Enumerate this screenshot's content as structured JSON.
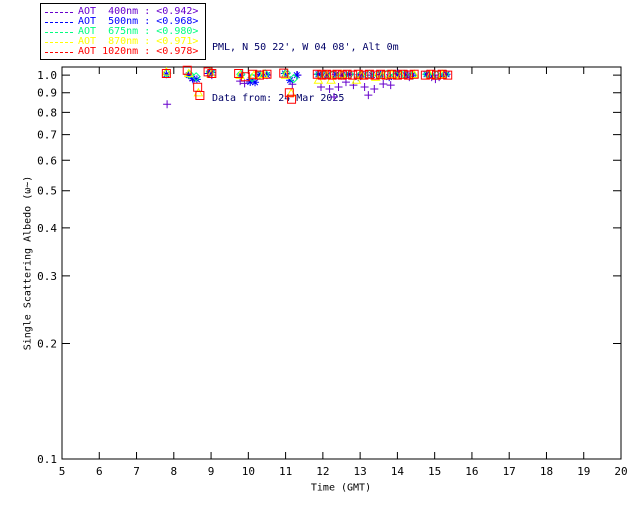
{
  "header": {
    "site_line": "PML, N 50 22', W 04 08', Alt 0m",
    "date_line": "Data from: 24 Mar 2025",
    "text_color": "#000066"
  },
  "legend": {
    "entries": [
      {
        "label": "AOT  400nm : <0.942>",
        "color": "#6600CC",
        "marker": "plus"
      },
      {
        "label": "AOT  500nm : <0.968>",
        "color": "#0000FF",
        "marker": "asterisk"
      },
      {
        "label": "AOT  675nm : <0.980>",
        "color": "#00FF7F",
        "marker": "diamond"
      },
      {
        "label": "AOT  870nm : <0.971>",
        "color": "#FFFF00",
        "marker": "triangle"
      },
      {
        "label": "AOT 1020nm : <0.978>",
        "color": "#FF0000",
        "marker": "square"
      }
    ]
  },
  "chart_data": {
    "type": "scatter",
    "title": "",
    "xlabel": "Time (GMT)",
    "ylabel": "Single Scattering Albedo (ω~)",
    "x_ticks": [
      5,
      6,
      7,
      8,
      9,
      10,
      11,
      12,
      13,
      14,
      15,
      16,
      17,
      18,
      19,
      20
    ],
    "y_ticks": [
      1.0,
      0.9,
      0.8,
      0.7,
      0.6,
      0.5,
      0.4,
      0.3,
      0.2,
      0.1
    ],
    "xlim": [
      5,
      20
    ],
    "ylim": [
      0.1,
      1.05
    ],
    "y_scale": "log",
    "grid": false,
    "legend_position": "top-left",
    "axis_color": "#000000",
    "series": [
      {
        "name": "AOT 400nm",
        "mean_label": "<0.942>",
        "color": "#6600CC",
        "marker": "plus",
        "points": [
          [
            7.82,
            0.84
          ],
          [
            8.38,
            1.005
          ],
          [
            8.52,
            0.97
          ],
          [
            8.93,
            1.01
          ],
          [
            9.02,
            1.0
          ],
          [
            9.78,
            0.965
          ],
          [
            9.9,
            0.952
          ],
          [
            10.05,
            0.975
          ],
          [
            10.22,
            1.0
          ],
          [
            10.48,
            1.005
          ],
          [
            11.0,
            1.01
          ],
          [
            11.18,
            0.947
          ],
          [
            11.32,
            1.0
          ],
          [
            11.85,
            1.005
          ],
          [
            11.95,
            0.931
          ],
          [
            12.18,
            0.92
          ],
          [
            12.3,
            0.877
          ],
          [
            12.42,
            0.931
          ],
          [
            12.55,
            1.0
          ],
          [
            12.62,
            0.959
          ],
          [
            12.82,
            0.942
          ],
          [
            13.02,
            1.005
          ],
          [
            13.12,
            0.931
          ],
          [
            13.22,
            0.887
          ],
          [
            13.38,
            0.92
          ],
          [
            13.55,
            1.0
          ],
          [
            13.62,
            0.948
          ],
          [
            13.82,
            0.942
          ],
          [
            14.02,
            1.01
          ],
          [
            14.28,
            1.005
          ],
          [
            14.32,
            0.988
          ],
          [
            14.42,
            1.0
          ],
          [
            14.85,
            1.0
          ],
          [
            14.92,
            0.988
          ],
          [
            15.02,
            0.976
          ],
          [
            15.12,
            0.988
          ],
          [
            15.3,
            1.0
          ]
        ]
      },
      {
        "name": "AOT 500nm",
        "mean_label": "<0.968>",
        "color": "#0000FF",
        "marker": "asterisk",
        "points": [
          [
            7.8,
            1.005
          ],
          [
            8.4,
            1.0
          ],
          [
            8.5,
            0.98
          ],
          [
            8.62,
            0.975
          ],
          [
            8.95,
            1.01
          ],
          [
            9.02,
            1.015
          ],
          [
            9.8,
            1.0
          ],
          [
            10.05,
            0.96
          ],
          [
            10.18,
            0.958
          ],
          [
            10.32,
            1.005
          ],
          [
            10.5,
            1.0
          ],
          [
            10.98,
            1.01
          ],
          [
            11.12,
            0.97
          ],
          [
            11.3,
            1.0
          ],
          [
            11.88,
            1.005
          ],
          [
            12.0,
            1.0
          ],
          [
            12.12,
            1.0
          ],
          [
            12.35,
            1.005
          ],
          [
            12.52,
            1.0
          ],
          [
            12.7,
            1.005
          ],
          [
            12.95,
            0.988
          ],
          [
            13.1,
            1.0
          ],
          [
            13.32,
            1.0
          ],
          [
            13.55,
            1.005
          ],
          [
            13.78,
            0.988
          ],
          [
            14.0,
            1.005
          ],
          [
            14.22,
            1.0
          ],
          [
            14.4,
            1.0
          ],
          [
            14.78,
            1.005
          ],
          [
            14.95,
            1.0
          ],
          [
            15.15,
            1.0
          ],
          [
            15.32,
            1.005
          ]
        ]
      },
      {
        "name": "AOT 675nm",
        "mean_label": "<0.980>",
        "color": "#00FF7F",
        "marker": "diamond",
        "points": [
          [
            7.81,
            1.012
          ],
          [
            8.42,
            1.005
          ],
          [
            8.6,
            0.99
          ],
          [
            8.98,
            1.02
          ],
          [
            9.8,
            1.005
          ],
          [
            10.1,
            0.985
          ],
          [
            10.28,
            1.0
          ],
          [
            10.45,
            1.008
          ],
          [
            11.02,
            1.012
          ],
          [
            11.22,
            0.98
          ],
          [
            11.9,
            1.005
          ],
          [
            12.05,
            1.0
          ],
          [
            12.28,
            1.005
          ],
          [
            12.5,
            1.0
          ],
          [
            12.72,
            1.005
          ],
          [
            13.0,
            1.0
          ],
          [
            13.25,
            1.005
          ],
          [
            13.5,
            1.0
          ],
          [
            13.72,
            1.005
          ],
          [
            13.95,
            1.0
          ],
          [
            14.18,
            1.005
          ],
          [
            14.42,
            1.0
          ],
          [
            14.8,
            1.005
          ],
          [
            15.05,
            1.0
          ],
          [
            15.28,
            1.005
          ]
        ]
      },
      {
        "name": "AOT 870nm",
        "mean_label": "<0.971>",
        "color": "#FFFF00",
        "marker": "triangle",
        "points": [
          [
            7.8,
            1.02
          ],
          [
            8.4,
            1.01
          ],
          [
            8.66,
            0.9
          ],
          [
            9.0,
            1.005
          ],
          [
            9.78,
            1.0
          ],
          [
            10.15,
            1.0
          ],
          [
            10.4,
            1.005
          ],
          [
            11.0,
            1.0
          ],
          [
            11.15,
            0.898
          ],
          [
            11.88,
            0.971
          ],
          [
            12.1,
            1.0
          ],
          [
            12.22,
            0.971
          ],
          [
            12.5,
            1.005
          ],
          [
            12.9,
            0.971
          ],
          [
            13.05,
            1.0
          ],
          [
            13.42,
            0.988
          ],
          [
            13.6,
            1.0
          ],
          [
            13.85,
            1.005
          ],
          [
            14.1,
            1.0
          ],
          [
            14.45,
            1.005
          ],
          [
            14.88,
            1.0
          ],
          [
            15.2,
            1.005
          ]
        ]
      },
      {
        "name": "AOT 1020nm",
        "mean_label": "<0.978>",
        "color": "#FF0000",
        "marker": "square",
        "points": [
          [
            7.8,
            1.01
          ],
          [
            8.36,
            1.03
          ],
          [
            8.64,
            0.93
          ],
          [
            8.7,
            0.885
          ],
          [
            8.92,
            1.02
          ],
          [
            9.02,
            1.01
          ],
          [
            9.74,
            1.01
          ],
          [
            9.92,
            0.99
          ],
          [
            10.12,
            1.005
          ],
          [
            10.3,
            1.0
          ],
          [
            10.5,
            1.005
          ],
          [
            10.95,
            1.012
          ],
          [
            11.1,
            0.9
          ],
          [
            11.16,
            0.865
          ],
          [
            11.85,
            1.005
          ],
          [
            11.98,
            1.0
          ],
          [
            12.1,
            1.005
          ],
          [
            12.25,
            1.0
          ],
          [
            12.38,
            1.005
          ],
          [
            12.52,
            1.0
          ],
          [
            12.65,
            1.005
          ],
          [
            12.8,
            1.0
          ],
          [
            12.95,
            1.005
          ],
          [
            13.1,
            1.0
          ],
          [
            13.25,
            1.005
          ],
          [
            13.4,
            1.0
          ],
          [
            13.55,
            1.005
          ],
          [
            13.7,
            1.0
          ],
          [
            13.85,
            1.005
          ],
          [
            14.0,
            1.0
          ],
          [
            14.15,
            1.005
          ],
          [
            14.3,
            1.0
          ],
          [
            14.45,
            1.005
          ],
          [
            14.75,
            1.0
          ],
          [
            14.9,
            1.005
          ],
          [
            15.05,
            1.0
          ],
          [
            15.2,
            1.005
          ],
          [
            15.35,
            1.0
          ]
        ]
      }
    ]
  }
}
